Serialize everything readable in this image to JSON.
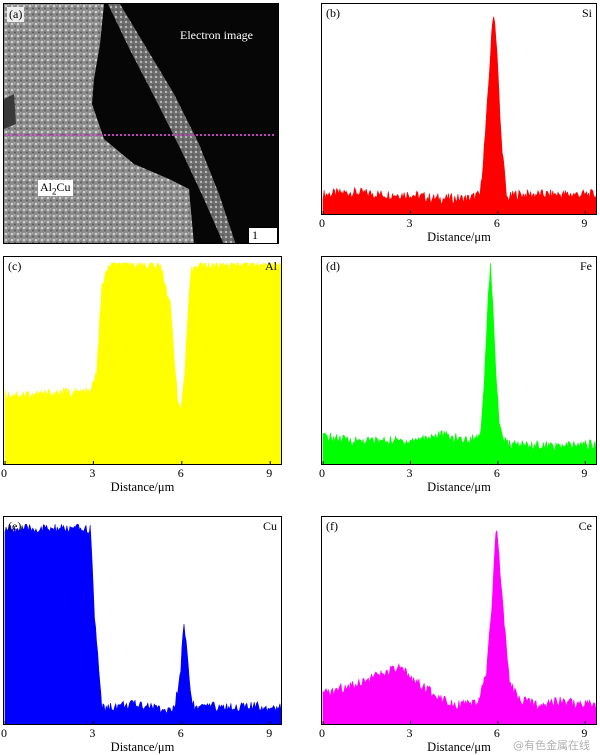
{
  "sem_panel": {
    "label": "(a)",
    "title": "Electron image",
    "phase_label": "Al₂Cu",
    "scale_bar": "1 μm"
  },
  "axis": {
    "xlabel": "Distance/μm",
    "ticks": [
      "0",
      "3",
      "6",
      "9"
    ]
  },
  "watermark": "@有色金属在线",
  "chart_data": [
    {
      "type": "area",
      "panel": "(b)",
      "element": "Si",
      "color": "#ff0000",
      "xlabel": "Distance/μm",
      "xlim": [
        0,
        9.4
      ],
      "ylim": [
        0,
        100
      ],
      "x": [
        0,
        1,
        2,
        3,
        3.8,
        4.5,
        5.0,
        5.4,
        5.6,
        5.75,
        5.85,
        5.95,
        6.1,
        6.3,
        6.6,
        7.0,
        8,
        9,
        9.4
      ],
      "y": [
        10,
        11,
        10,
        10,
        8,
        8,
        8,
        10,
        45,
        80,
        100,
        85,
        40,
        8,
        10,
        10,
        10,
        10,
        10
      ]
    },
    {
      "type": "area",
      "panel": "(c)",
      "element": "Al",
      "color": "#ffff00",
      "xlabel": "Distance/μm",
      "xlim": [
        0,
        9.4
      ],
      "ylim": [
        0,
        100
      ],
      "x": [
        0,
        1,
        2,
        2.9,
        3.1,
        3.3,
        3.6,
        4.5,
        5.3,
        5.6,
        5.85,
        5.95,
        6.1,
        6.3,
        6.5,
        7,
        8,
        9,
        9.4
      ],
      "y": [
        35,
        35,
        36,
        36,
        45,
        90,
        100,
        100,
        98,
        80,
        35,
        25,
        45,
        95,
        100,
        99,
        100,
        100,
        100
      ]
    },
    {
      "type": "area",
      "panel": "(d)",
      "element": "Fe",
      "color": "#00ff00",
      "xlabel": "Distance/μm",
      "xlim": [
        0,
        9.4
      ],
      "ylim": [
        0,
        100
      ],
      "x": [
        0,
        1,
        2,
        3,
        4,
        5,
        5.4,
        5.55,
        5.65,
        5.75,
        5.9,
        6.05,
        6.3,
        7,
        8,
        9,
        9.4
      ],
      "y": [
        14,
        12,
        12,
        12,
        15,
        12,
        15,
        45,
        80,
        100,
        55,
        18,
        10,
        10,
        9,
        10,
        10
      ]
    },
    {
      "type": "area",
      "panel": "(e)",
      "element": "Cu",
      "color": "#0000ff",
      "xlabel": "Distance/μm",
      "xlim": [
        0,
        9.4
      ],
      "ylim": [
        0,
        100
      ],
      "x": [
        0,
        1,
        2,
        2.9,
        3.05,
        3.3,
        4,
        4.8,
        5.5,
        5.75,
        5.95,
        6.05,
        6.15,
        6.3,
        6.45,
        7,
        8,
        9,
        9.4
      ],
      "y": [
        97,
        97,
        97,
        97,
        50,
        8,
        10,
        10,
        7,
        8,
        25,
        50,
        42,
        15,
        8,
        9,
        9,
        9,
        9
      ]
    },
    {
      "type": "area",
      "panel": "(f)",
      "element": "Ce",
      "color": "#ff00ff",
      "xlabel": "Distance/μm",
      "xlim": [
        0,
        9.4
      ],
      "ylim": [
        0,
        100
      ],
      "x": [
        0,
        1,
        2,
        2.6,
        3,
        3.5,
        4,
        4.6,
        5.3,
        5.6,
        5.8,
        5.95,
        6.1,
        6.4,
        6.8,
        7.5,
        8,
        9,
        9.4
      ],
      "y": [
        15,
        20,
        25,
        28,
        24,
        18,
        14,
        10,
        10,
        25,
        60,
        100,
        70,
        20,
        12,
        10,
        12,
        10,
        10
      ]
    }
  ]
}
